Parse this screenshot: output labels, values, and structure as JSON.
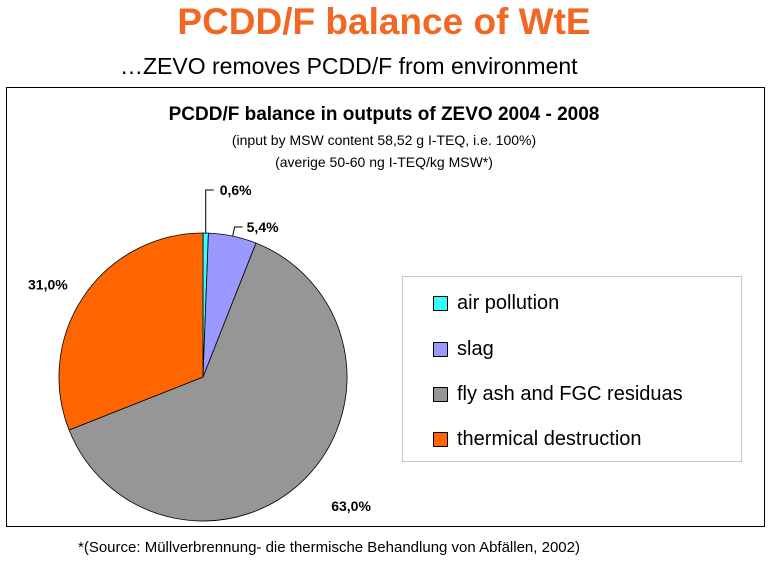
{
  "slide": {
    "title": "PCDD/F balance of WtE",
    "subtitle": "…ZEVO removes PCDD/F from environment",
    "footnote": "*(Source: Müllverbrennung- die thermische Behandlung von Abfällen, 2002)",
    "title_color": "#f26722"
  },
  "chart_data": {
    "type": "pie",
    "title": "PCDD/F balance in outputs of ZEVO 2004 - 2008",
    "subtitle_lines": [
      "(input by MSW content 58,52 g I-TEQ, i.e. 100%)",
      "(averige 50-60 ng I-TEQ/kg MSW*)"
    ],
    "categories": [
      "air pollution",
      "slag",
      "fly ash and FGC residuas",
      "thermical destruction"
    ],
    "values": [
      0.6,
      5.4,
      63.0,
      31.0
    ],
    "data_labels": [
      "0,6%",
      "5,4%",
      "63,0%",
      "31,0%"
    ],
    "colors": [
      "#33ffff",
      "#9999ff",
      "#969696",
      "#ff6600"
    ],
    "legend_position": "right"
  }
}
